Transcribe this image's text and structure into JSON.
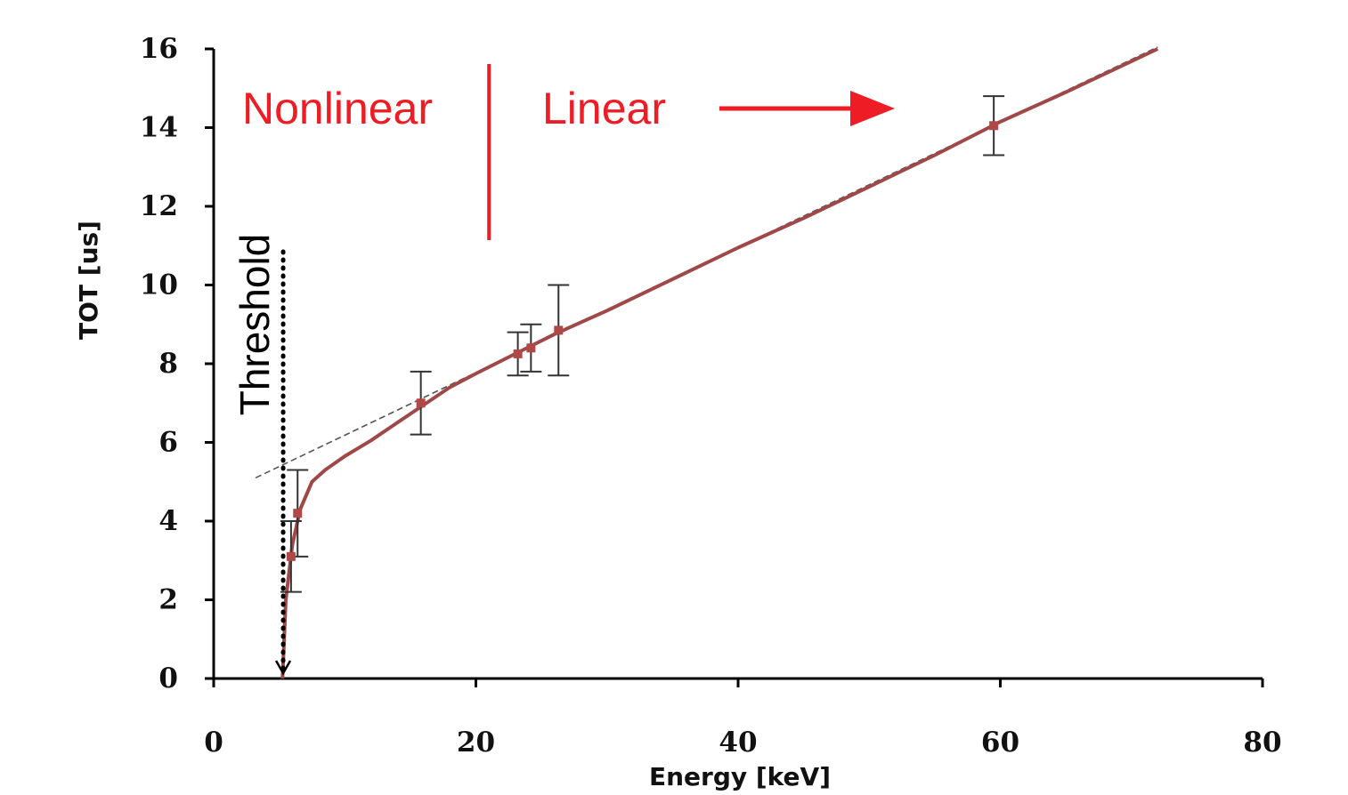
{
  "chart_data": {
    "type": "line",
    "xlabel": "Energy [keV]",
    "ylabel": "TOT [us]",
    "xlim": [
      0,
      80
    ],
    "ylim": [
      0,
      16
    ],
    "x_ticks": [
      0,
      20,
      40,
      60,
      80
    ],
    "y_ticks": [
      0,
      2,
      4,
      6,
      8,
      10,
      12,
      14,
      16
    ],
    "grid": false,
    "legend": "none",
    "colors": {
      "curve": "#a04848",
      "marker": "#b04848",
      "errorbar": "#333333",
      "fit": "#555555",
      "annotation": "#ee1c24",
      "threshold": "#000000"
    },
    "series": [
      {
        "values": [
          {
            "x": 5.9,
            "y": 3.1,
            "err": 0.9
          },
          {
            "x": 6.4,
            "y": 4.2,
            "err": 1.1
          },
          {
            "x": 15.8,
            "y": 7.0,
            "err": 0.8
          },
          {
            "x": 23.2,
            "y": 8.25,
            "err": 0.55
          },
          {
            "x": 24.2,
            "y": 8.4,
            "err": 0.6
          },
          {
            "x": 26.3,
            "y": 8.85,
            "err": 1.15
          },
          {
            "x": 59.5,
            "y": 14.05,
            "err": 0.75
          }
        ]
      }
    ],
    "fit_curve": [
      [
        5.25,
        0.0
      ],
      [
        5.5,
        2.0
      ],
      [
        6.0,
        3.4
      ],
      [
        6.6,
        4.3
      ],
      [
        7.5,
        5.0
      ],
      [
        8.5,
        5.3
      ],
      [
        10,
        5.65
      ],
      [
        12,
        6.05
      ],
      [
        14,
        6.5
      ],
      [
        16,
        6.95
      ],
      [
        18,
        7.4
      ],
      [
        20,
        7.75
      ],
      [
        23,
        8.25
      ],
      [
        26,
        8.75
      ],
      [
        30,
        9.35
      ],
      [
        35,
        10.15
      ],
      [
        40,
        10.95
      ],
      [
        45,
        11.7
      ],
      [
        50,
        12.5
      ],
      [
        55,
        13.3
      ],
      [
        60,
        14.15
      ],
      [
        65,
        14.9
      ],
      [
        72,
        16.0
      ]
    ],
    "linear_fit": {
      "x": [
        3.2,
        72
      ],
      "y": [
        5.1,
        16.05
      ]
    },
    "annotations": {
      "nonlinear": "Nonlinear",
      "linear": "Linear",
      "threshold": "Threshold",
      "divider_x": 21,
      "threshold_x": 5.3
    }
  }
}
